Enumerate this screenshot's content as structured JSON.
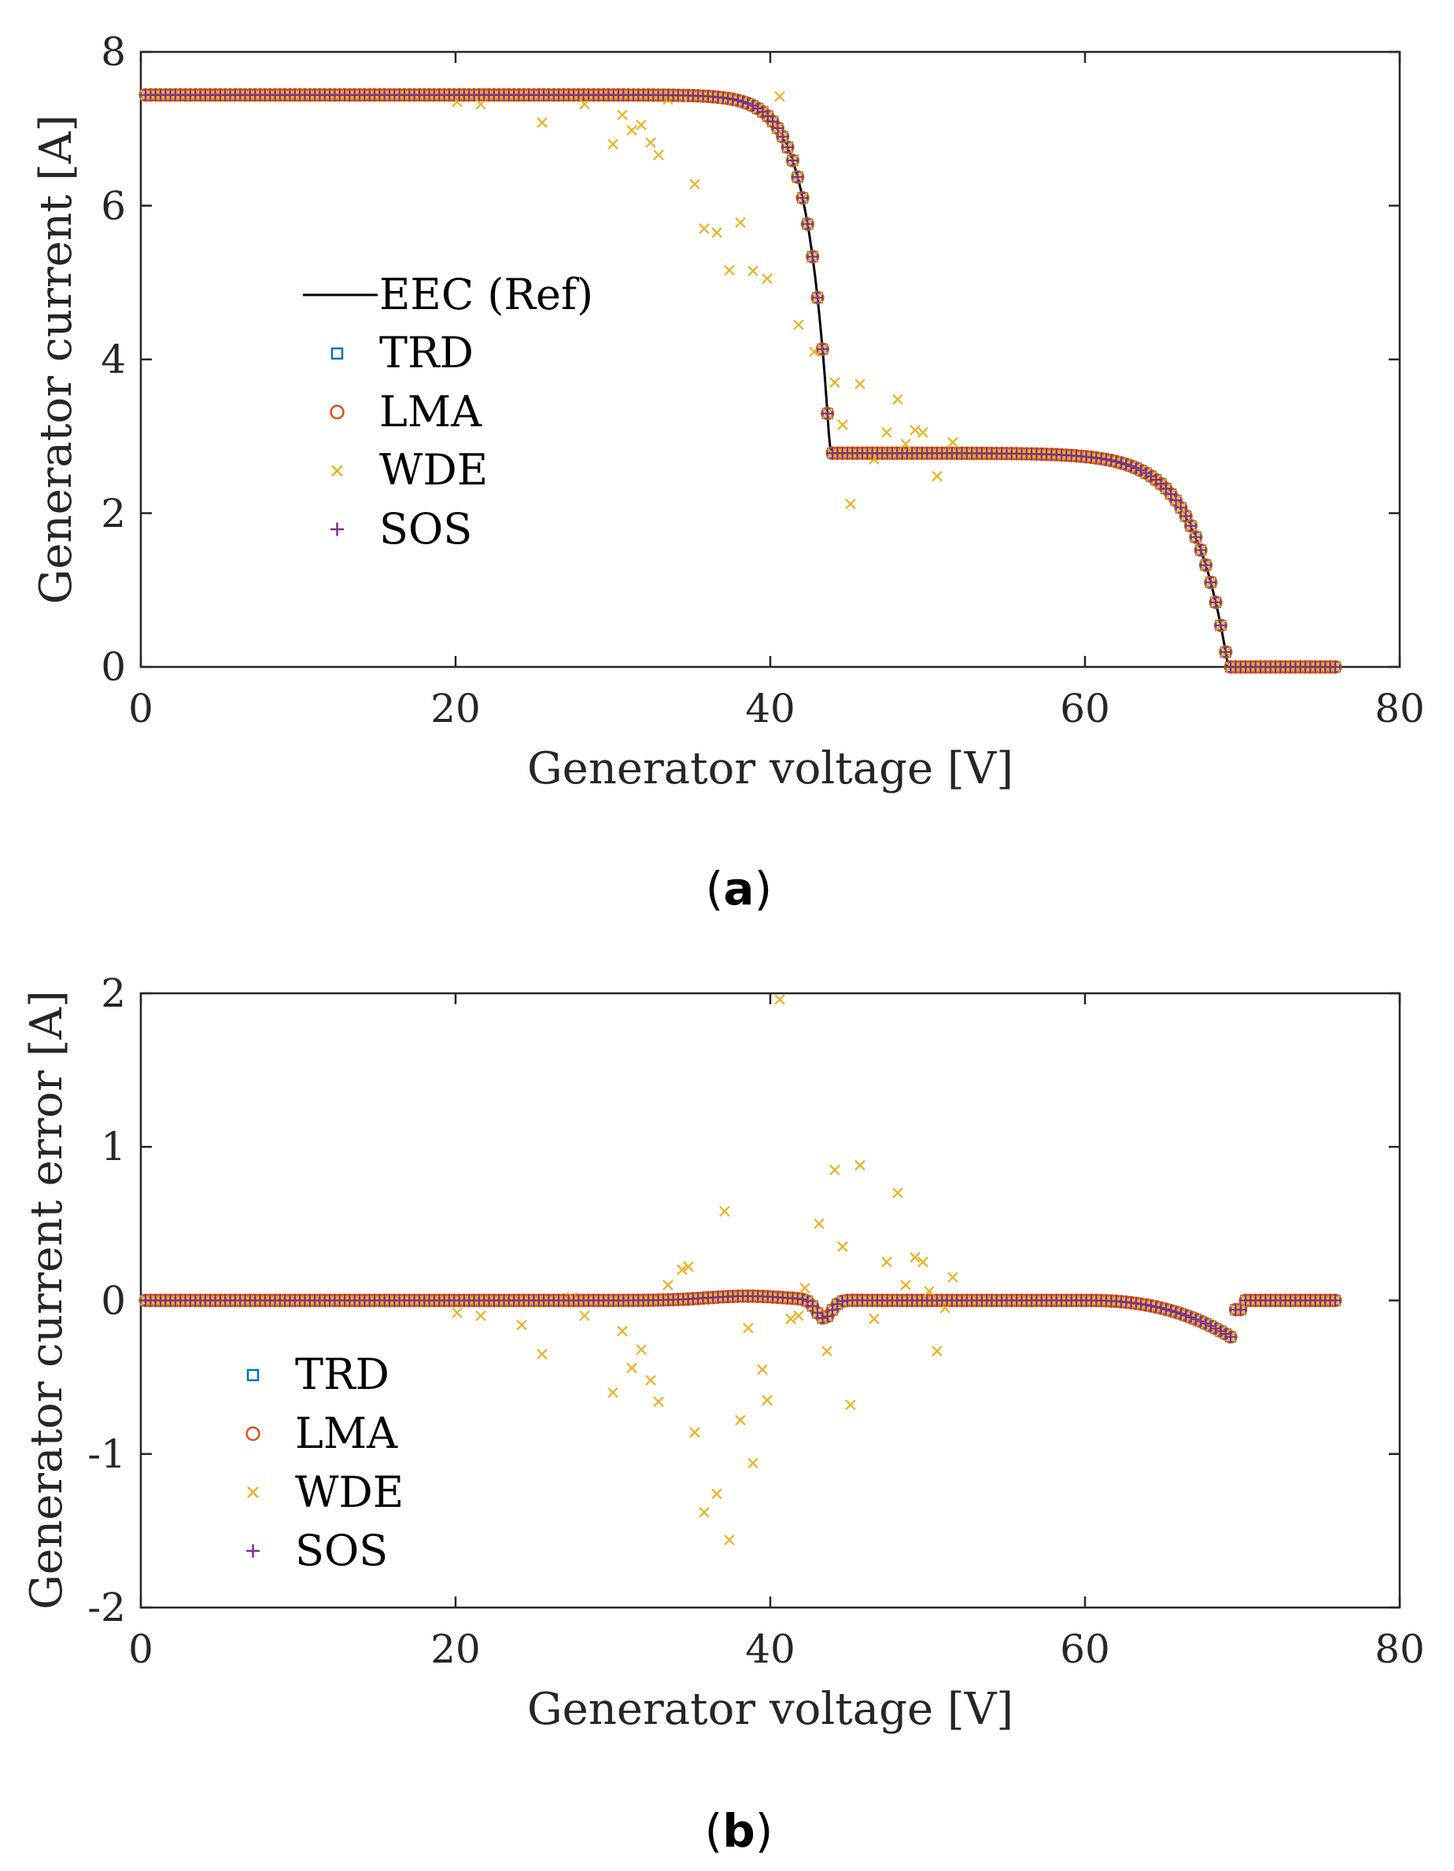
{
  "colors": {
    "ref": "#000000",
    "trd": "#0072BD",
    "lma": "#D95319",
    "wde": "#EDB120",
    "sos": "#7E2F8E",
    "axis": "#262626"
  },
  "chart_data": [
    {
      "type": "scatter",
      "caption": {
        "open": "(",
        "letter": "a",
        "close": ")"
      },
      "xlabel": "Generator voltage [V]",
      "ylabel": "Generator current [A]",
      "xlim": [
        0,
        80
      ],
      "ylim": [
        0,
        8
      ],
      "xticks": [
        0,
        20,
        40,
        60,
        80
      ],
      "yticks": [
        0,
        2,
        4,
        6,
        8
      ],
      "ytick_labels": [
        "0",
        "2",
        "4",
        "6",
        "8"
      ],
      "grid": false,
      "legend_position": "center-left",
      "legend": [
        "EEC (Ref)",
        "TRD",
        "LMA",
        "WDE",
        "SOS"
      ],
      "series": [
        {
          "name": "EEC (Ref)",
          "key": "ref",
          "model": "iv",
          "x_range": [
            0.3,
            75.9
          ],
          "n": 600
        },
        {
          "name": "TRD",
          "key": "trd",
          "marker": "square",
          "model": "iv",
          "x_range": [
            0.3,
            75.9
          ],
          "n": 240
        },
        {
          "name": "LMA",
          "key": "lma",
          "marker": "circle",
          "model": "iv",
          "x_range": [
            0.3,
            75.9
          ],
          "n": 240
        },
        {
          "name": "WDE",
          "key": "wde",
          "marker": "x",
          "model": "iv",
          "x_range": [
            0.3,
            75.9
          ],
          "n": 240,
          "outliers": [
            [
              20.1,
              7.35
            ],
            [
              21.6,
              7.32
            ],
            [
              25.5,
              7.08
            ],
            [
              28.2,
              7.32
            ],
            [
              30,
              6.8
            ],
            [
              30.6,
              7.18
            ],
            [
              31.2,
              6.98
            ],
            [
              31.8,
              7.05
            ],
            [
              32.4,
              6.82
            ],
            [
              32.9,
              6.66
            ],
            [
              33.5,
              7.38
            ],
            [
              34.4,
              7.42
            ],
            [
              35.2,
              6.28
            ],
            [
              35.8,
              5.7
            ],
            [
              36.6,
              5.65
            ],
            [
              37.4,
              5.16
            ],
            [
              37.1,
              7.4
            ],
            [
              38.1,
              5.78
            ],
            [
              38.9,
              5.15
            ],
            [
              39.8,
              5.05
            ],
            [
              40.6,
              7.42
            ],
            [
              41.8,
              4.45
            ],
            [
              42.8,
              4.1
            ],
            [
              44.1,
              3.7
            ],
            [
              44.6,
              3.15
            ],
            [
              45.1,
              2.12
            ],
            [
              45.7,
              3.68
            ],
            [
              46.6,
              2.7
            ],
            [
              47.4,
              3.05
            ],
            [
              48.1,
              3.48
            ],
            [
              48.6,
              2.9
            ],
            [
              49.2,
              3.08
            ],
            [
              49.7,
              3.05
            ],
            [
              50.6,
              2.48
            ],
            [
              51.6,
              2.92
            ]
          ]
        },
        {
          "name": "SOS",
          "key": "sos",
          "marker": "plus",
          "model": "iv",
          "x_range": [
            0.3,
            75.9
          ],
          "n": 240
        }
      ]
    },
    {
      "type": "scatter",
      "caption": {
        "open": "(",
        "letter": "b",
        "close": ")"
      },
      "xlabel": "Generator voltage [V]",
      "ylabel": "Generator current error [A]",
      "xlim": [
        0,
        80
      ],
      "ylim": [
        -2,
        2
      ],
      "xticks": [
        0,
        20,
        40,
        60,
        80
      ],
      "yticks": [
        -2,
        -1,
        0,
        1,
        2
      ],
      "ytick_labels": [
        "-2",
        "-1",
        "0",
        "1",
        "2"
      ],
      "grid": false,
      "legend_position": "lower-left",
      "legend": [
        "TRD",
        "LMA",
        "WDE",
        "SOS"
      ],
      "series": [
        {
          "name": "TRD",
          "key": "trd",
          "marker": "square",
          "model": "err",
          "x_range": [
            0.3,
            75.9
          ],
          "n": 240
        },
        {
          "name": "LMA",
          "key": "lma",
          "marker": "circle",
          "model": "err",
          "x_range": [
            0.3,
            75.9
          ],
          "n": 240
        },
        {
          "name": "WDE",
          "key": "wde",
          "marker": "x",
          "model": "err",
          "x_range": [
            0.3,
            75.9
          ],
          "n": 240,
          "outliers": [
            [
              20.1,
              -0.08
            ],
            [
              21.6,
              -0.1
            ],
            [
              24.2,
              -0.16
            ],
            [
              25.5,
              -0.35
            ],
            [
              27.4,
              0.02
            ],
            [
              28.2,
              -0.1
            ],
            [
              30,
              -0.6
            ],
            [
              30.6,
              -0.2
            ],
            [
              31.2,
              -0.44
            ],
            [
              31.8,
              -0.32
            ],
            [
              32.4,
              -0.52
            ],
            [
              32.9,
              -0.66
            ],
            [
              33.5,
              0.1
            ],
            [
              34.4,
              0.2
            ],
            [
              34.8,
              0.22
            ],
            [
              35.2,
              -0.86
            ],
            [
              35.8,
              -1.38
            ],
            [
              36.6,
              -1.26
            ],
            [
              37.1,
              0.58
            ],
            [
              37.4,
              -1.56
            ],
            [
              38.1,
              -0.78
            ],
            [
              38.6,
              -0.18
            ],
            [
              38.9,
              -1.06
            ],
            [
              39.5,
              -0.45
            ],
            [
              39.8,
              -0.65
            ],
            [
              40.6,
              1.96
            ],
            [
              41.3,
              -0.12
            ],
            [
              41.8,
              -0.1
            ],
            [
              42.2,
              0.08
            ],
            [
              43.1,
              0.5
            ],
            [
              43.6,
              -0.33
            ],
            [
              44.1,
              0.85
            ],
            [
              44.6,
              0.35
            ],
            [
              45.1,
              -0.68
            ],
            [
              45.7,
              0.88
            ],
            [
              46.6,
              -0.12
            ],
            [
              47.4,
              0.25
            ],
            [
              48.1,
              0.7
            ],
            [
              48.6,
              0.1
            ],
            [
              49.2,
              0.28
            ],
            [
              49.7,
              0.25
            ],
            [
              50.1,
              0.06
            ],
            [
              50.6,
              -0.33
            ],
            [
              51.1,
              -0.05
            ],
            [
              51.6,
              0.15
            ]
          ]
        },
        {
          "name": "SOS",
          "key": "sos",
          "marker": "plus",
          "model": "err",
          "x_range": [
            0.3,
            75.9
          ],
          "n": 240
        }
      ]
    }
  ]
}
